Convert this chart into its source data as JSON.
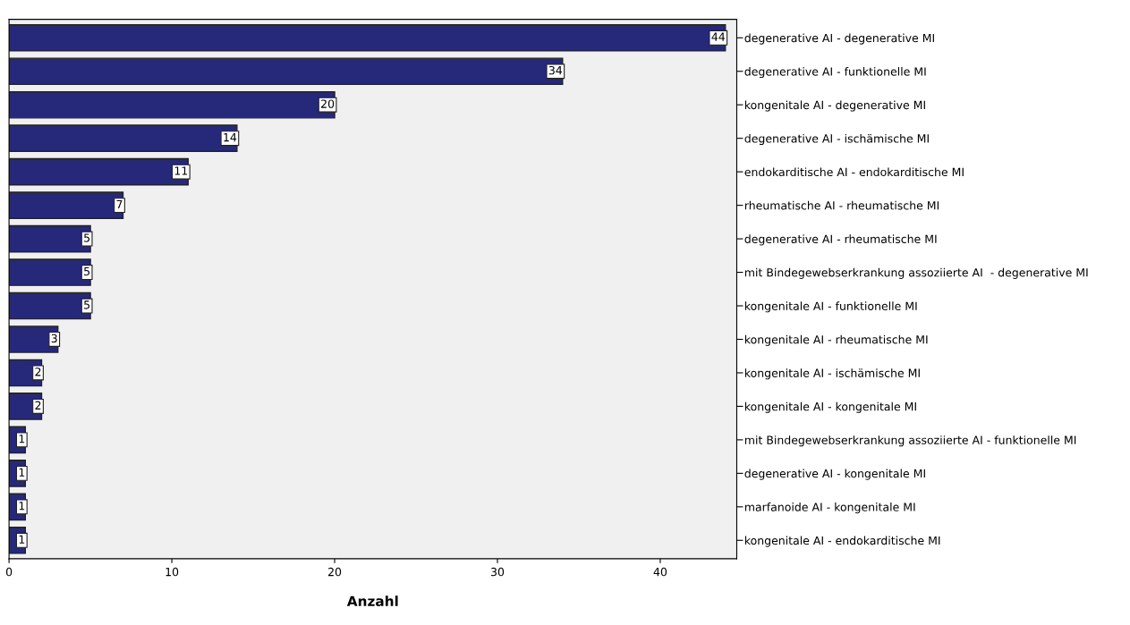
{
  "chart_data": {
    "type": "bar",
    "orientation": "horizontal",
    "xlabel": "Anzahl",
    "categories": [
      "degenerative AI - degenerative MI",
      "degenerative AI - funktionelle MI",
      "kongenitale AI - degenerative MI",
      "degenerative AI - ischämische MI",
      "endokarditische AI - endokarditische MI",
      "rheumatische AI - rheumatische MI",
      "degenerative AI - rheumatische MI",
      "mit Bindegewebserkrankung assoziierte AI  - degenerative MI",
      "kongenitale AI - funktionelle MI",
      "kongenitale AI - rheumatische MI",
      "kongenitale AI - ischämische MI",
      "kongenitale AI - kongenitale MI",
      "mit Bindegewebserkrankung assoziierte AI - funktionelle MI",
      "degenerative AI - kongenitale MI",
      "marfanoide AI - kongenitale MI",
      "kongenitale AI - endokarditische MI"
    ],
    "values": [
      44,
      34,
      20,
      14,
      11,
      7,
      5,
      5,
      5,
      3,
      2,
      2,
      1,
      1,
      1,
      1
    ],
    "color": "#26297a",
    "data_labels": true,
    "xlim": [
      0,
      44.7
    ],
    "xticks": [
      0,
      10,
      20,
      30,
      40
    ],
    "grid": false,
    "legend": false
  }
}
